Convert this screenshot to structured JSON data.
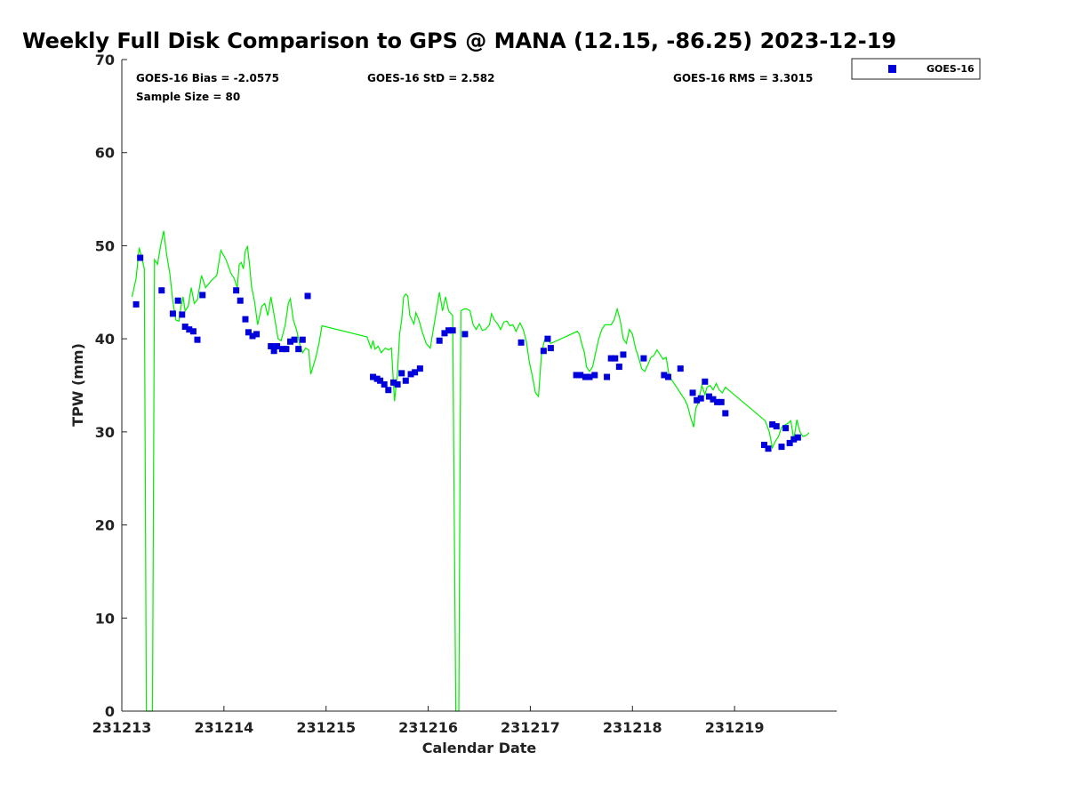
{
  "chart_data": {
    "type": "line+scatter",
    "title": "Weekly Full Disk Comparison to GPS @ MANA (12.15, -86.25) 2023-12-19",
    "xlabel": "Calendar Date",
    "ylabel": "TPW (mm)",
    "xlim": [
      0,
      7
    ],
    "ylim": [
      0,
      70
    ],
    "x_ticks": [
      {
        "x": 0,
        "label": "231213"
      },
      {
        "x": 1,
        "label": "231214"
      },
      {
        "x": 2,
        "label": "231215"
      },
      {
        "x": 3,
        "label": "231216"
      },
      {
        "x": 4,
        "label": "231217"
      },
      {
        "x": 5,
        "label": "231218"
      },
      {
        "x": 6,
        "label": "231219"
      }
    ],
    "y_ticks": [
      0,
      10,
      20,
      30,
      40,
      50,
      60,
      70
    ],
    "stats": {
      "bias": "GOES-16 Bias = -2.0575",
      "std": "GOES-16 StD = 2.582",
      "rms": "GOES-16 RMS = 3.3015",
      "sample": "Sample Size = 80"
    },
    "legend": {
      "label": "GOES-16",
      "position": "top-right outside"
    },
    "colors": {
      "gps_line": "#00ee00",
      "goes_marker": "#0000dd",
      "axis": "#222222"
    },
    "series": [
      {
        "name": "GPS",
        "kind": "line",
        "points": [
          [
            0.1,
            44.5
          ],
          [
            0.14,
            46.5
          ],
          [
            0.17,
            49.8
          ],
          [
            0.2,
            48.5
          ],
          [
            0.22,
            47.5
          ],
          [
            0.24,
            0
          ],
          [
            0.26,
            0
          ],
          [
            0.28,
            0
          ],
          [
            0.3,
            0
          ],
          [
            0.32,
            48.5
          ],
          [
            0.35,
            48
          ],
          [
            0.38,
            50
          ],
          [
            0.41,
            51.6
          ],
          [
            0.44,
            49
          ],
          [
            0.47,
            47
          ],
          [
            0.5,
            44
          ],
          [
            0.53,
            42
          ],
          [
            0.56,
            41.9
          ],
          [
            0.58,
            43.5
          ],
          [
            0.6,
            44.5
          ],
          [
            0.62,
            43
          ],
          [
            0.65,
            43.5
          ],
          [
            0.68,
            45.5
          ],
          [
            0.71,
            43.8
          ],
          [
            0.74,
            44.2
          ],
          [
            0.78,
            46.8
          ],
          [
            0.82,
            45.5
          ],
          [
            0.88,
            46.3
          ],
          [
            0.93,
            46.8
          ],
          [
            0.97,
            49.5
          ],
          [
            1.02,
            48.5
          ],
          [
            1.07,
            47
          ],
          [
            1.1,
            46.5
          ],
          [
            1.13,
            45.5
          ],
          [
            1.15,
            48
          ],
          [
            1.17,
            48.2
          ],
          [
            1.19,
            47.5
          ],
          [
            1.21,
            49.5
          ],
          [
            1.23,
            49.9
          ],
          [
            1.25,
            48
          ],
          [
            1.27,
            45.6
          ],
          [
            1.3,
            44
          ],
          [
            1.33,
            41.5
          ],
          [
            1.37,
            43.5
          ],
          [
            1.4,
            43.8
          ],
          [
            1.43,
            42.5
          ],
          [
            1.46,
            44.5
          ],
          [
            1.5,
            42
          ],
          [
            1.53,
            40
          ],
          [
            1.56,
            39.8
          ],
          [
            1.6,
            41.5
          ],
          [
            1.63,
            43.8
          ],
          [
            1.65,
            44.3
          ],
          [
            1.68,
            42
          ],
          [
            1.71,
            41
          ],
          [
            1.74,
            39.5
          ],
          [
            1.77,
            38.5
          ],
          [
            1.8,
            39
          ],
          [
            1.83,
            38.8
          ],
          [
            1.85,
            36.2
          ],
          [
            1.9,
            38
          ],
          [
            1.93,
            39.5
          ],
          [
            1.96,
            41.4
          ],
          [
            2.4,
            40.2
          ],
          [
            2.44,
            39
          ],
          [
            2.46,
            39.8
          ],
          [
            2.48,
            38.9
          ],
          [
            2.51,
            39.2
          ],
          [
            2.54,
            38.5
          ],
          [
            2.58,
            39
          ],
          [
            2.61,
            38.8
          ],
          [
            2.64,
            39
          ],
          [
            2.67,
            33.3
          ],
          [
            2.7,
            36.5
          ],
          [
            2.72,
            40.5
          ],
          [
            2.74,
            42
          ],
          [
            2.76,
            44.5
          ],
          [
            2.78,
            44.8
          ],
          [
            2.8,
            44.6
          ],
          [
            2.82,
            42.5
          ],
          [
            2.86,
            41.6
          ],
          [
            2.88,
            42.8
          ],
          [
            2.91,
            42
          ],
          [
            2.94,
            40.8
          ],
          [
            2.98,
            39.5
          ],
          [
            3.02,
            39
          ],
          [
            3.05,
            41
          ],
          [
            3.08,
            43
          ],
          [
            3.11,
            45
          ],
          [
            3.14,
            43
          ],
          [
            3.17,
            44.5
          ],
          [
            3.2,
            43
          ],
          [
            3.24,
            42.5
          ],
          [
            3.27,
            0
          ],
          [
            3.3,
            0
          ],
          [
            3.32,
            43
          ],
          [
            3.35,
            43.2
          ],
          [
            3.38,
            43.2
          ],
          [
            3.41,
            43
          ],
          [
            3.44,
            41.5
          ],
          [
            3.47,
            41
          ],
          [
            3.5,
            41.6
          ],
          [
            3.53,
            40.9
          ],
          [
            3.56,
            41
          ],
          [
            3.6,
            41.5
          ],
          [
            3.62,
            42.7
          ],
          [
            3.65,
            42
          ],
          [
            3.68,
            41.6
          ],
          [
            3.71,
            41
          ],
          [
            3.74,
            41.8
          ],
          [
            3.77,
            41.9
          ],
          [
            3.8,
            41.4
          ],
          [
            3.83,
            41.5
          ],
          [
            3.86,
            40.8
          ],
          [
            3.9,
            41.7
          ],
          [
            3.93,
            41
          ],
          [
            3.96,
            39.8
          ],
          [
            3.99,
            37.5
          ],
          [
            4.02,
            36
          ],
          [
            4.05,
            34.2
          ],
          [
            4.08,
            33.8
          ],
          [
            4.11,
            38.5
          ],
          [
            4.14,
            39.9
          ],
          [
            4.17,
            40
          ],
          [
            4.2,
            39.5
          ],
          [
            4.46,
            40.8
          ],
          [
            4.48,
            40.5
          ],
          [
            4.5,
            39.6
          ],
          [
            4.53,
            38.5
          ],
          [
            4.55,
            37
          ],
          [
            4.58,
            36.5
          ],
          [
            4.61,
            37
          ],
          [
            4.64,
            38.5
          ],
          [
            4.67,
            40
          ],
          [
            4.7,
            41
          ],
          [
            4.73,
            41.5
          ],
          [
            4.76,
            41.5
          ],
          [
            4.79,
            41.5
          ],
          [
            4.82,
            42
          ],
          [
            4.85,
            43.2
          ],
          [
            4.88,
            42
          ],
          [
            4.91,
            40
          ],
          [
            4.94,
            39.5
          ],
          [
            4.97,
            41
          ],
          [
            5.0,
            40.5
          ],
          [
            5.03,
            39
          ],
          [
            5.06,
            38
          ],
          [
            5.09,
            36.8
          ],
          [
            5.12,
            36.5
          ],
          [
            5.15,
            37.2
          ],
          [
            5.18,
            38
          ],
          [
            5.21,
            38.2
          ],
          [
            5.24,
            38.8
          ],
          [
            5.27,
            38.3
          ],
          [
            5.3,
            37.8
          ],
          [
            5.33,
            38
          ],
          [
            5.36,
            36
          ],
          [
            5.39,
            35.5
          ],
          [
            5.42,
            35
          ],
          [
            5.45,
            34.5
          ],
          [
            5.48,
            34
          ],
          [
            5.51,
            33.5
          ],
          [
            5.54,
            32.8
          ],
          [
            5.57,
            31.5
          ],
          [
            5.6,
            30.5
          ],
          [
            5.62,
            32.5
          ],
          [
            5.64,
            33
          ],
          [
            5.66,
            34
          ],
          [
            5.68,
            35
          ],
          [
            5.71,
            34
          ],
          [
            5.73,
            34.8
          ],
          [
            5.76,
            35
          ],
          [
            5.79,
            34.5
          ],
          [
            5.82,
            35.2
          ],
          [
            5.85,
            34.5
          ],
          [
            5.88,
            34.2
          ],
          [
            5.91,
            34.8
          ],
          [
            5.94,
            34.5
          ],
          [
            6.3,
            31.2
          ],
          [
            6.34,
            30
          ],
          [
            6.37,
            28.3
          ],
          [
            6.4,
            29
          ],
          [
            6.43,
            29.5
          ],
          [
            6.46,
            30.5
          ],
          [
            6.49,
            30.7
          ],
          [
            6.52,
            30.9
          ],
          [
            6.55,
            31.2
          ],
          [
            6.58,
            29.2
          ],
          [
            6.61,
            31.3
          ],
          [
            6.64,
            30
          ],
          [
            6.67,
            29.5
          ],
          [
            6.7,
            29.6
          ],
          [
            6.73,
            29.9
          ]
        ]
      },
      {
        "name": "GOES-16",
        "kind": "scatter",
        "points": [
          [
            0.14,
            43.7
          ],
          [
            0.18,
            48.7
          ],
          [
            0.39,
            45.2
          ],
          [
            0.5,
            42.7
          ],
          [
            0.55,
            44.1
          ],
          [
            0.59,
            42.6
          ],
          [
            0.62,
            41.3
          ],
          [
            0.66,
            41
          ],
          [
            0.7,
            40.8
          ],
          [
            0.74,
            39.9
          ],
          [
            0.79,
            44.7
          ],
          [
            1.12,
            45.2
          ],
          [
            1.16,
            44.1
          ],
          [
            1.21,
            42.1
          ],
          [
            1.24,
            40.7
          ],
          [
            1.28,
            40.3
          ],
          [
            1.32,
            40.5
          ],
          [
            1.46,
            39.2
          ],
          [
            1.49,
            38.7
          ],
          [
            1.52,
            39.2
          ],
          [
            1.57,
            38.9
          ],
          [
            1.61,
            38.9
          ],
          [
            1.65,
            39.7
          ],
          [
            1.69,
            39.9
          ],
          [
            1.73,
            38.9
          ],
          [
            1.77,
            39.9
          ],
          [
            1.82,
            44.6
          ],
          [
            2.46,
            35.9
          ],
          [
            2.5,
            35.7
          ],
          [
            2.53,
            35.5
          ],
          [
            2.57,
            35.1
          ],
          [
            2.61,
            34.5
          ],
          [
            2.66,
            35.3
          ],
          [
            2.7,
            35.1
          ],
          [
            2.74,
            36.3
          ],
          [
            2.78,
            35.5
          ],
          [
            2.83,
            36.2
          ],
          [
            2.87,
            36.4
          ],
          [
            2.92,
            36.8
          ],
          [
            3.11,
            39.8
          ],
          [
            3.16,
            40.6
          ],
          [
            3.2,
            40.9
          ],
          [
            3.24,
            40.9
          ],
          [
            3.36,
            40.5
          ],
          [
            3.91,
            39.6
          ],
          [
            4.13,
            38.7
          ],
          [
            4.17,
            40
          ],
          [
            4.2,
            39
          ],
          [
            4.45,
            36.1
          ],
          [
            4.49,
            36.1
          ],
          [
            4.54,
            35.9
          ],
          [
            4.58,
            35.9
          ],
          [
            4.63,
            36.1
          ],
          [
            4.75,
            35.9
          ],
          [
            4.79,
            37.9
          ],
          [
            4.83,
            37.9
          ],
          [
            4.87,
            37
          ],
          [
            4.91,
            38.3
          ],
          [
            5.11,
            37.9
          ],
          [
            5.31,
            36.1
          ],
          [
            5.35,
            35.9
          ],
          [
            5.47,
            36.8
          ],
          [
            5.59,
            34.2
          ],
          [
            5.63,
            33.4
          ],
          [
            5.67,
            33.6
          ],
          [
            5.71,
            35.4
          ],
          [
            5.75,
            33.8
          ],
          [
            5.79,
            33.5
          ],
          [
            5.83,
            33.2
          ],
          [
            5.87,
            33.2
          ],
          [
            5.91,
            32
          ],
          [
            6.29,
            28.6
          ],
          [
            6.33,
            28.2
          ],
          [
            6.37,
            30.8
          ],
          [
            6.41,
            30.6
          ],
          [
            6.46,
            28.4
          ],
          [
            6.5,
            30.4
          ],
          [
            6.54,
            28.8
          ],
          [
            6.58,
            29.2
          ],
          [
            6.62,
            29.4
          ]
        ]
      }
    ]
  }
}
